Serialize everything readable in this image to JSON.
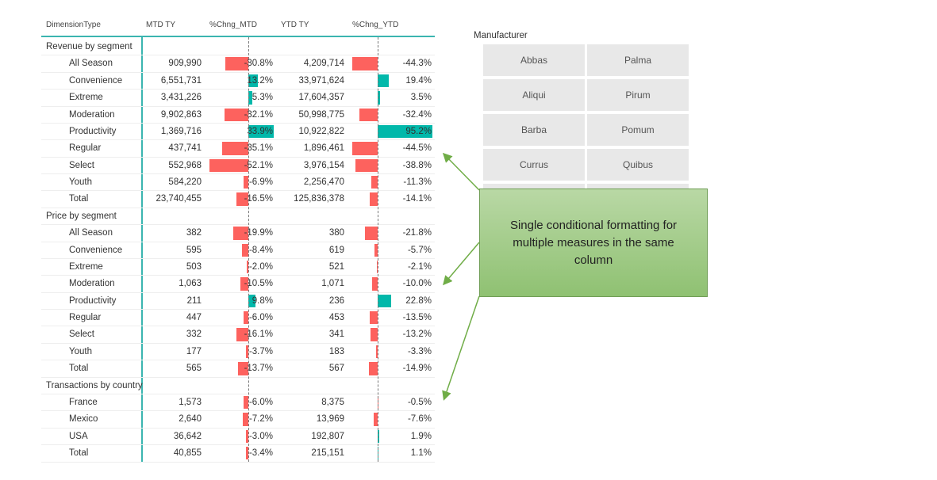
{
  "table": {
    "headers": [
      "DimensionType",
      "MTD TY",
      "%Chng_MTD",
      "YTD TY",
      "%Chng_YTD"
    ],
    "groups": [
      {
        "title": "Revenue by segment",
        "rows": [
          [
            "All Season",
            "909,990",
            {
              "value": -30.8,
              "label": "-30.8%"
            },
            "4,209,714",
            {
              "value": -44.3,
              "label": "-44.3%"
            }
          ],
          [
            "Convenience",
            "6,551,731",
            {
              "value": 13.2,
              "label": "13.2%"
            },
            "33,971,624",
            {
              "value": 19.4,
              "label": "19.4%"
            }
          ],
          [
            "Extreme",
            "3,431,226",
            {
              "value": 5.3,
              "label": "5.3%"
            },
            "17,604,357",
            {
              "value": 3.5,
              "label": "3.5%"
            }
          ],
          [
            "Moderation",
            "9,902,863",
            {
              "value": -32.1,
              "label": "-32.1%"
            },
            "50,998,775",
            {
              "value": -32.4,
              "label": "-32.4%"
            }
          ],
          [
            "Productivity",
            "1,369,716",
            {
              "value": 33.9,
              "label": "33.9%"
            },
            "10,922,822",
            {
              "value": 95.2,
              "label": "95.2%"
            }
          ],
          [
            "Regular",
            "437,741",
            {
              "value": -35.1,
              "label": "-35.1%"
            },
            "1,896,461",
            {
              "value": -44.5,
              "label": "-44.5%"
            }
          ],
          [
            "Select",
            "552,968",
            {
              "value": -52.1,
              "label": "-52.1%"
            },
            "3,976,154",
            {
              "value": -38.8,
              "label": "-38.8%"
            }
          ],
          [
            "Youth",
            "584,220",
            {
              "value": -6.9,
              "label": "-6.9%"
            },
            "2,256,470",
            {
              "value": -11.3,
              "label": "-11.3%"
            }
          ],
          [
            "Total",
            "23,740,455",
            {
              "value": -16.5,
              "label": "-16.5%"
            },
            "125,836,378",
            {
              "value": -14.1,
              "label": "-14.1%"
            }
          ]
        ]
      },
      {
        "title": "Price by segment",
        "rows": [
          [
            "All Season",
            "382",
            {
              "value": -19.9,
              "label": "-19.9%"
            },
            "380",
            {
              "value": -21.8,
              "label": "-21.8%"
            }
          ],
          [
            "Convenience",
            "595",
            {
              "value": -8.4,
              "label": "-8.4%"
            },
            "619",
            {
              "value": -5.7,
              "label": "-5.7%"
            }
          ],
          [
            "Extreme",
            "503",
            {
              "value": -2.0,
              "label": "-2.0%"
            },
            "521",
            {
              "value": -2.1,
              "label": "-2.1%"
            }
          ],
          [
            "Moderation",
            "1,063",
            {
              "value": -10.5,
              "label": "-10.5%"
            },
            "1,071",
            {
              "value": -10.0,
              "label": "-10.0%"
            }
          ],
          [
            "Productivity",
            "211",
            {
              "value": 9.8,
              "label": "9.8%"
            },
            "236",
            {
              "value": 22.8,
              "label": "22.8%"
            }
          ],
          [
            "Regular",
            "447",
            {
              "value": -6.0,
              "label": "-6.0%"
            },
            "453",
            {
              "value": -13.5,
              "label": "-13.5%"
            }
          ],
          [
            "Select",
            "332",
            {
              "value": -16.1,
              "label": "-16.1%"
            },
            "341",
            {
              "value": -13.2,
              "label": "-13.2%"
            }
          ],
          [
            "Youth",
            "177",
            {
              "value": -3.7,
              "label": "-3.7%"
            },
            "183",
            {
              "value": -3.3,
              "label": "-3.3%"
            }
          ],
          [
            "Total",
            "565",
            {
              "value": -13.7,
              "label": "-13.7%"
            },
            "567",
            {
              "value": -14.9,
              "label": "-14.9%"
            }
          ]
        ]
      },
      {
        "title": "Transactions by country",
        "rows": [
          [
            "France",
            "1,573",
            {
              "value": -6.0,
              "label": "-6.0%"
            },
            "8,375",
            {
              "value": -0.5,
              "label": "-0.5%"
            }
          ],
          [
            "Mexico",
            "2,640",
            {
              "value": -7.2,
              "label": "-7.2%"
            },
            "13,969",
            {
              "value": -7.6,
              "label": "-7.6%"
            }
          ],
          [
            "USA",
            "36,642",
            {
              "value": -3.0,
              "label": "-3.0%"
            },
            "192,807",
            {
              "value": 1.9,
              "label": "1.9%"
            }
          ],
          [
            "Total",
            "40,855",
            {
              "value": -3.4,
              "label": "-3.4%"
            },
            "215,151",
            {
              "value": 1.1,
              "label": "1.1%"
            }
          ]
        ]
      }
    ]
  },
  "slicer": {
    "title": "Manufacturer",
    "items": [
      "Abbas",
      "Palma",
      "Aliqui",
      "Pirum",
      "Barba",
      "Pomum",
      "Currus",
      "Quibus"
    ]
  },
  "callout": {
    "text": "Single conditional formatting for multiple measures in the same column"
  }
}
